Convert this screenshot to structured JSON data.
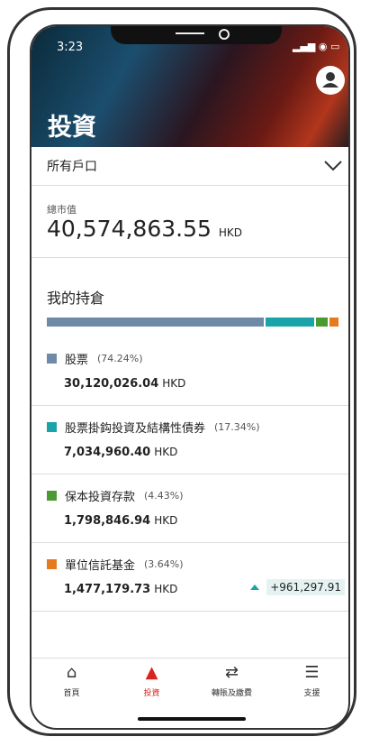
{
  "status_bar": {
    "time": "3:23"
  },
  "header": {
    "title": "投資"
  },
  "account_selector": {
    "label": "所有戶口"
  },
  "market_value": {
    "label": "總市值",
    "amount": "40,574,863.55",
    "currency": "HKD"
  },
  "holdings": {
    "title": "我的持倉",
    "items": [
      {
        "name": "股票",
        "percent": 74.24,
        "percent_label": "(74.24%)",
        "amount": "30,120,026.04",
        "currency": "HKD",
        "color": "#6d8ba6"
      },
      {
        "name": "股票掛鈎投資及結構性債券",
        "percent": 17.34,
        "percent_label": "(17.34%)",
        "amount": "7,034,960.40",
        "currency": "HKD",
        "color": "#1aa3a8"
      },
      {
        "name": "保本投資存款",
        "percent": 4.43,
        "percent_label": "(4.43%)",
        "amount": "1,798,846.94",
        "currency": "HKD",
        "color": "#4a9a32"
      },
      {
        "name": "單位信託基金",
        "percent": 3.64,
        "percent_label": "(3.64%)",
        "amount": "1,477,179.73",
        "currency": "HKD",
        "color": "#e57a1f",
        "change": "+961,297.91"
      }
    ]
  },
  "nav": {
    "items": [
      "首頁",
      "投資",
      "轉賬及繳費",
      "支援"
    ]
  }
}
